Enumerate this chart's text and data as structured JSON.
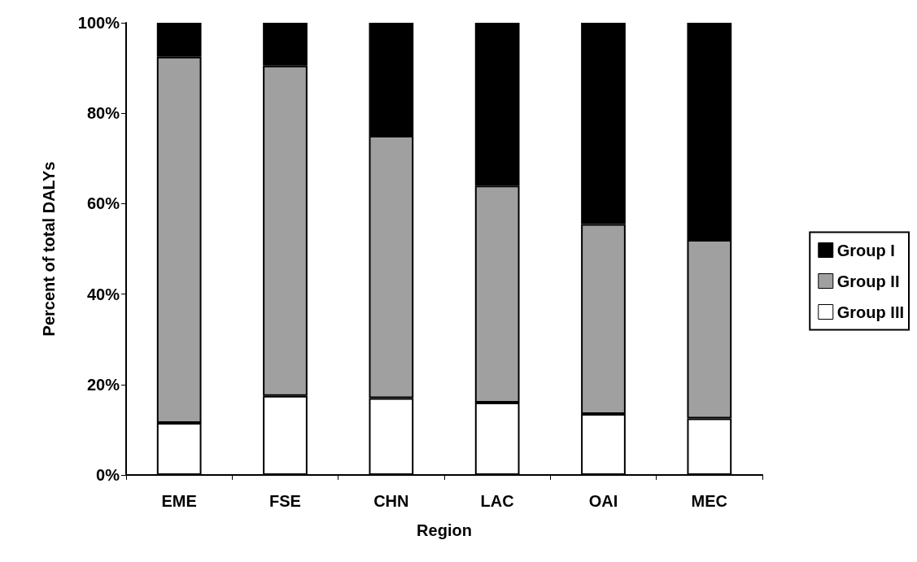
{
  "chart_data": {
    "type": "bar",
    "stacked": true,
    "xlabel": "Region",
    "ylabel": "Percent of total DALYs",
    "categories": [
      "EME",
      "FSE",
      "CHN",
      "LAC",
      "OAI",
      "MEC"
    ],
    "series": [
      {
        "name": "Group III",
        "color": "#ffffff",
        "values": [
          11.5,
          17.5,
          17,
          16,
          13.5,
          12.5
        ]
      },
      {
        "name": "Group II",
        "color": "#a0a0a0",
        "values": [
          81,
          73,
          58,
          48,
          42,
          39.5
        ]
      },
      {
        "name": "Group I",
        "color": "#000000",
        "values": [
          7.5,
          9.5,
          25,
          36,
          44.5,
          48
        ]
      }
    ],
    "ylim": [
      0,
      100
    ],
    "yticks": [
      {
        "value": 0,
        "label": "0%"
      },
      {
        "value": 20,
        "label": "20%"
      },
      {
        "value": 40,
        "label": "40%"
      },
      {
        "value": 60,
        "label": "60%"
      },
      {
        "value": 80,
        "label": "80%"
      },
      {
        "value": 100,
        "label": "100%"
      }
    ],
    "grid": false,
    "legend": "right"
  }
}
